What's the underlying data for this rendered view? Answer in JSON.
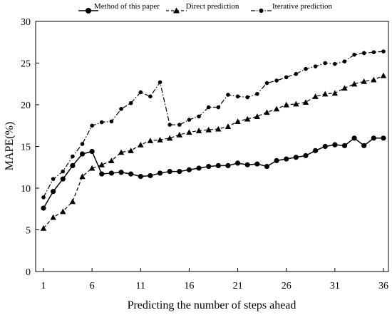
{
  "chart_data": {
    "type": "line",
    "xlabel": "Predicting the number of steps ahead",
    "ylabel": "MAPE(%)",
    "ylim": [
      0,
      30
    ],
    "xlim": [
      1,
      36
    ],
    "xticks": [
      1,
      6,
      11,
      16,
      21,
      26,
      31,
      36
    ],
    "yticks": [
      0,
      5,
      10,
      15,
      20,
      25,
      30
    ],
    "grid": false,
    "legend_position": "top",
    "x": [
      1,
      2,
      3,
      4,
      5,
      6,
      7,
      8,
      9,
      10,
      11,
      12,
      13,
      14,
      15,
      16,
      17,
      18,
      19,
      20,
      21,
      22,
      23,
      24,
      25,
      26,
      27,
      28,
      29,
      30,
      31,
      32,
      33,
      34,
      35,
      36
    ],
    "series": [
      {
        "name": "Method of this paper",
        "marker": "circle",
        "line_style": "solid",
        "values": [
          7.6,
          9.6,
          11.1,
          12.7,
          14.1,
          14.4,
          11.7,
          11.8,
          11.9,
          11.7,
          11.4,
          11.5,
          11.8,
          12.0,
          12.0,
          12.2,
          12.4,
          12.6,
          12.7,
          12.7,
          13.0,
          12.8,
          12.9,
          12.6,
          13.3,
          13.5,
          13.7,
          13.9,
          14.5,
          15.0,
          15.2,
          15.1,
          16.0,
          15.1,
          16.0,
          16.0
        ]
      },
      {
        "name": "Direct prediction",
        "marker": "triangle",
        "line_style": "dashed",
        "values": [
          5.2,
          6.5,
          7.2,
          8.4,
          11.4,
          12.4,
          12.8,
          13.3,
          14.3,
          14.5,
          15.2,
          15.7,
          15.8,
          16.0,
          16.4,
          16.7,
          16.9,
          17.0,
          17.1,
          17.4,
          18.0,
          18.3,
          18.6,
          19.1,
          19.5,
          20.0,
          20.1,
          20.3,
          21.0,
          21.3,
          21.4,
          22.0,
          22.5,
          22.8,
          23.0,
          23.5
        ]
      },
      {
        "name": "Iterative prediction",
        "marker": "circle-small",
        "line_style": "dash-dot",
        "values": [
          8.9,
          11.1,
          12.0,
          13.8,
          15.3,
          17.5,
          17.9,
          18.0,
          19.5,
          20.2,
          21.5,
          21.0,
          22.7,
          17.6,
          17.6,
          18.2,
          18.6,
          19.7,
          19.7,
          21.2,
          21.0,
          20.9,
          21.3,
          22.6,
          22.9,
          23.3,
          23.7,
          24.3,
          24.6,
          25.0,
          24.9,
          25.2,
          26.0,
          26.2,
          26.3,
          26.4
        ]
      }
    ]
  }
}
